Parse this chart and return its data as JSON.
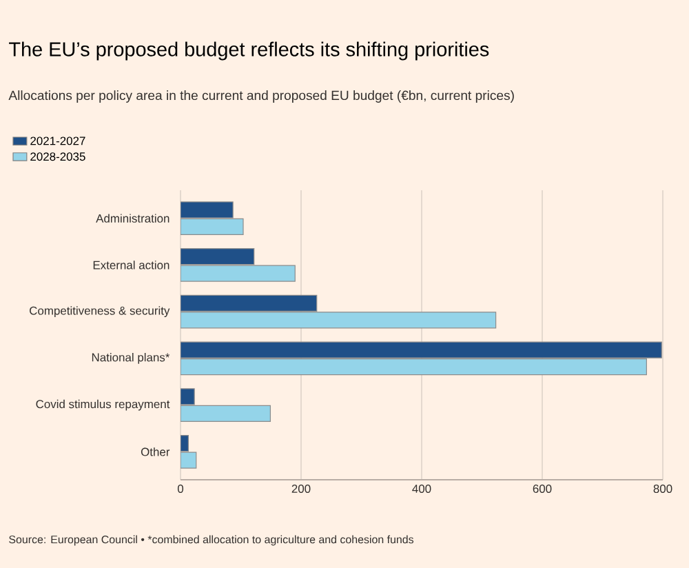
{
  "chart_data": {
    "type": "bar",
    "orientation": "horizontal",
    "title": "The EU’s proposed budget reflects its shifting priorities",
    "subtitle": "Allocations per policy area in the current and proposed EU budget (€bn, current prices)",
    "categories": [
      "Administration",
      "External action",
      "Competitiveness & security",
      "National plans*",
      "Covid stimulus repayment",
      "Other"
    ],
    "series": [
      {
        "name": "2021-2027",
        "color": "#1f5088",
        "values": [
          87,
          122,
          226,
          798,
          23,
          13
        ]
      },
      {
        "name": "2028-2035",
        "color": "#94d4e9",
        "values": [
          104,
          190,
          523,
          773,
          149,
          26
        ]
      }
    ],
    "xlim": [
      0,
      800
    ],
    "xticks": [
      0,
      200,
      400,
      600,
      800
    ],
    "grid": "x",
    "legend": "top left",
    "annotations": [
      "Source: European Council • *combined allocation to agriculture and cohesion funds"
    ]
  }
}
